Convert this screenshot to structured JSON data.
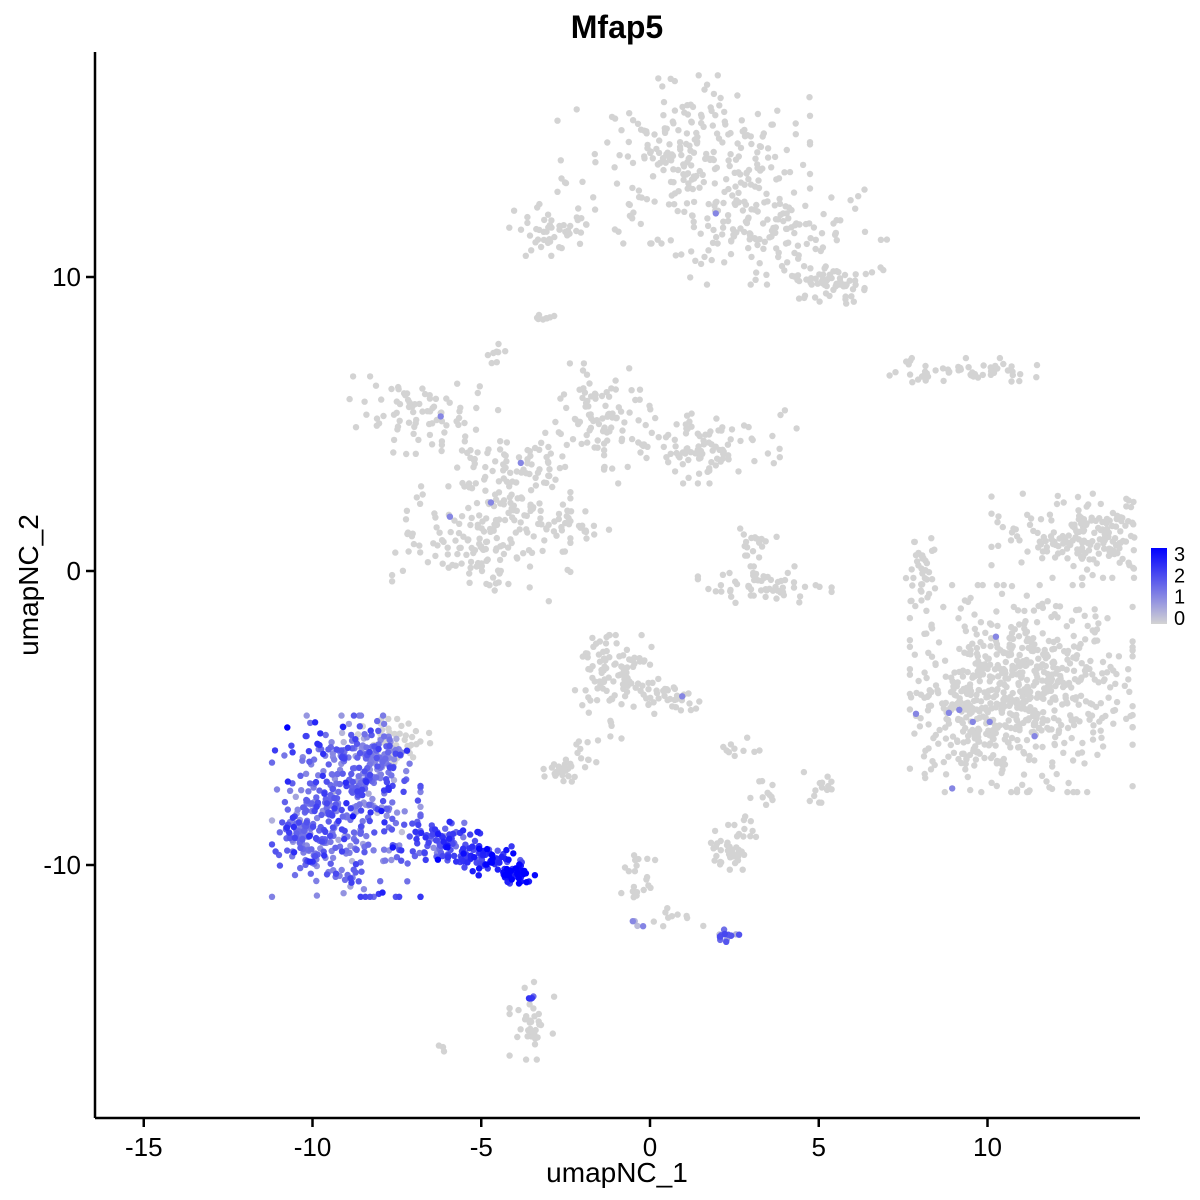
{
  "chart_data": {
    "type": "scatter",
    "title": "Mfap5",
    "xlabel": "umapNC_1",
    "ylabel": "umapNC_2",
    "xlim": [
      -16.5,
      14.5
    ],
    "ylim": [
      -18.5,
      17.5
    ],
    "x_ticks": [
      -15,
      -10,
      -5,
      0,
      5,
      10
    ],
    "x_tick_labels": [
      "-15",
      "-10",
      "-5",
      "0",
      "5",
      "10"
    ],
    "y_ticks": [
      -10,
      0,
      10
    ],
    "y_tick_labels": [
      "-10",
      "0",
      "10"
    ],
    "grid": false,
    "legend": {
      "placement": "right",
      "type": "colorbar",
      "range": [
        0,
        3
      ],
      "ticks": [
        "3",
        "2",
        "1",
        "0"
      ],
      "low_color": "#d3d3d3",
      "high_color": "#0000ff"
    },
    "clusters": [
      {
        "cx": 13.2,
        "cy": 1.2,
        "sx": 1.4,
        "sy": 0.65,
        "n": 220,
        "expr": 0
      },
      {
        "cx": 1.0,
        "cy": 14.0,
        "sx": 1.7,
        "sy": 1.3,
        "n": 260,
        "expr": 0
      },
      {
        "cx": 3.5,
        "cy": 11.5,
        "sx": 1.6,
        "sy": 0.8,
        "n": 140,
        "expr": 0
      },
      {
        "cx": 5.3,
        "cy": 9.8,
        "sx": 0.6,
        "sy": 0.35,
        "n": 60,
        "expr": 0
      },
      {
        "cx": -2.8,
        "cy": 11.6,
        "sx": 0.8,
        "sy": 0.4,
        "n": 50,
        "expr": 0
      },
      {
        "cx": -3.1,
        "cy": 8.6,
        "sx": 0.15,
        "sy": 0.1,
        "n": 8,
        "expr": 0
      },
      {
        "cx": -4.6,
        "cy": 7.4,
        "sx": 0.15,
        "sy": 0.15,
        "n": 8,
        "expr": 0
      },
      {
        "cx": 9.3,
        "cy": 6.8,
        "sx": 1.0,
        "sy": 0.2,
        "n": 60,
        "expr": 0
      },
      {
        "cx": -6.7,
        "cy": 5.3,
        "sx": 1.0,
        "sy": 0.6,
        "n": 80,
        "expr": 0
      },
      {
        "cx": -1.5,
        "cy": 5.3,
        "sx": 0.8,
        "sy": 0.8,
        "n": 80,
        "expr": 0
      },
      {
        "cx": 1.5,
        "cy": 4.3,
        "sx": 1.3,
        "sy": 0.6,
        "n": 110,
        "expr": 0
      },
      {
        "cx": -4.3,
        "cy": 3.6,
        "sx": 0.9,
        "sy": 0.5,
        "n": 60,
        "expr": 0
      },
      {
        "cx": -5.0,
        "cy": 0.9,
        "sx": 1.2,
        "sy": 0.9,
        "n": 150,
        "expr": 0
      },
      {
        "cx": -3.9,
        "cy": 2.6,
        "sx": 0.6,
        "sy": 0.8,
        "n": 50,
        "expr": 0
      },
      {
        "cx": -2.2,
        "cy": 1.5,
        "sx": 0.5,
        "sy": 0.3,
        "n": 25,
        "expr": 0
      },
      {
        "cx": 3.4,
        "cy": -0.5,
        "sx": 0.9,
        "sy": 0.3,
        "n": 60,
        "expr": 0
      },
      {
        "cx": 3.2,
        "cy": 0.8,
        "sx": 0.25,
        "sy": 0.3,
        "n": 18,
        "expr": 0
      },
      {
        "cx": 8.0,
        "cy": -0.1,
        "sx": 0.25,
        "sy": 0.7,
        "n": 35,
        "expr": 0
      },
      {
        "cx": 11.0,
        "cy": -4.0,
        "sx": 1.5,
        "sy": 1.6,
        "n": 650,
        "expr": 0
      },
      {
        "cx": 9.2,
        "cy": -5.2,
        "sx": 0.6,
        "sy": 1.0,
        "n": 80,
        "expr": 0
      },
      {
        "cx": -1.0,
        "cy": -3.5,
        "sx": 0.6,
        "sy": 0.6,
        "n": 100,
        "expr": 0
      },
      {
        "cx": 0.5,
        "cy": -4.3,
        "sx": 0.6,
        "sy": 0.3,
        "n": 35,
        "expr": 0
      },
      {
        "cx": -2.6,
        "cy": -6.8,
        "sx": 0.35,
        "sy": 0.2,
        "n": 25,
        "expr": 0
      },
      {
        "cx": -1.7,
        "cy": -5.8,
        "sx": 0.4,
        "sy": 0.4,
        "n": 15,
        "expr": 0
      },
      {
        "cx": 2.5,
        "cy": -9.5,
        "sx": 0.4,
        "sy": 0.3,
        "n": 35,
        "expr": 0
      },
      {
        "cx": 2.7,
        "cy": -8.7,
        "sx": 0.2,
        "sy": 0.2,
        "n": 10,
        "expr": 0
      },
      {
        "cx": 3.3,
        "cy": -7.5,
        "sx": 0.15,
        "sy": 0.3,
        "n": 10,
        "expr": 0
      },
      {
        "cx": 5.0,
        "cy": -7.5,
        "sx": 0.2,
        "sy": 0.3,
        "n": 14,
        "expr": 0
      },
      {
        "cx": 2.8,
        "cy": -6.0,
        "sx": 0.3,
        "sy": 0.15,
        "n": 10,
        "expr": 0
      },
      {
        "cx": -0.4,
        "cy": -10.5,
        "sx": 0.25,
        "sy": 0.6,
        "n": 20,
        "expr": 0
      },
      {
        "cx": 0.8,
        "cy": -11.8,
        "sx": 0.4,
        "sy": 0.15,
        "n": 10,
        "expr": 0
      },
      {
        "cx": -3.5,
        "cy": -15.3,
        "sx": 0.3,
        "sy": 0.6,
        "n": 35,
        "expr": 0
      },
      {
        "cx": -6.2,
        "cy": -16.3,
        "sx": 0.1,
        "sy": 0.1,
        "n": 3,
        "expr": 0
      },
      {
        "cx": -7.6,
        "cy": -5.8,
        "sx": 0.5,
        "sy": 0.35,
        "n": 50,
        "expr": 0
      },
      {
        "cx": -9.0,
        "cy": -8.0,
        "sx": 1.0,
        "sy": 1.4,
        "n": 380,
        "expr": 1.5
      },
      {
        "cx": -10.2,
        "cy": -9.0,
        "sx": 0.35,
        "sy": 0.6,
        "n": 90,
        "expr": 1.5
      },
      {
        "cx": -8.3,
        "cy": -6.3,
        "sx": 0.5,
        "sy": 0.5,
        "n": 80,
        "expr": 1.4
      },
      {
        "cx": -6.3,
        "cy": -9.3,
        "sx": 0.6,
        "sy": 0.35,
        "n": 90,
        "expr": 1.8
      },
      {
        "cx": -4.9,
        "cy": -9.8,
        "sx": 0.5,
        "sy": 0.25,
        "n": 70,
        "expr": 2.3
      },
      {
        "cx": -4.0,
        "cy": -10.3,
        "sx": 0.3,
        "sy": 0.15,
        "n": 45,
        "expr": 2.8
      },
      {
        "cx": 2.3,
        "cy": -12.4,
        "sx": 0.2,
        "sy": 0.12,
        "n": 14,
        "expr": 1.4
      },
      {
        "cx": -0.4,
        "cy": -11.9,
        "sx": 0.1,
        "sy": 0.1,
        "n": 4,
        "expr": 1.3
      },
      {
        "cx": -3.6,
        "cy": -14.5,
        "sx": 0.1,
        "sy": 0.1,
        "n": 4,
        "expr": 1.6
      }
    ]
  }
}
